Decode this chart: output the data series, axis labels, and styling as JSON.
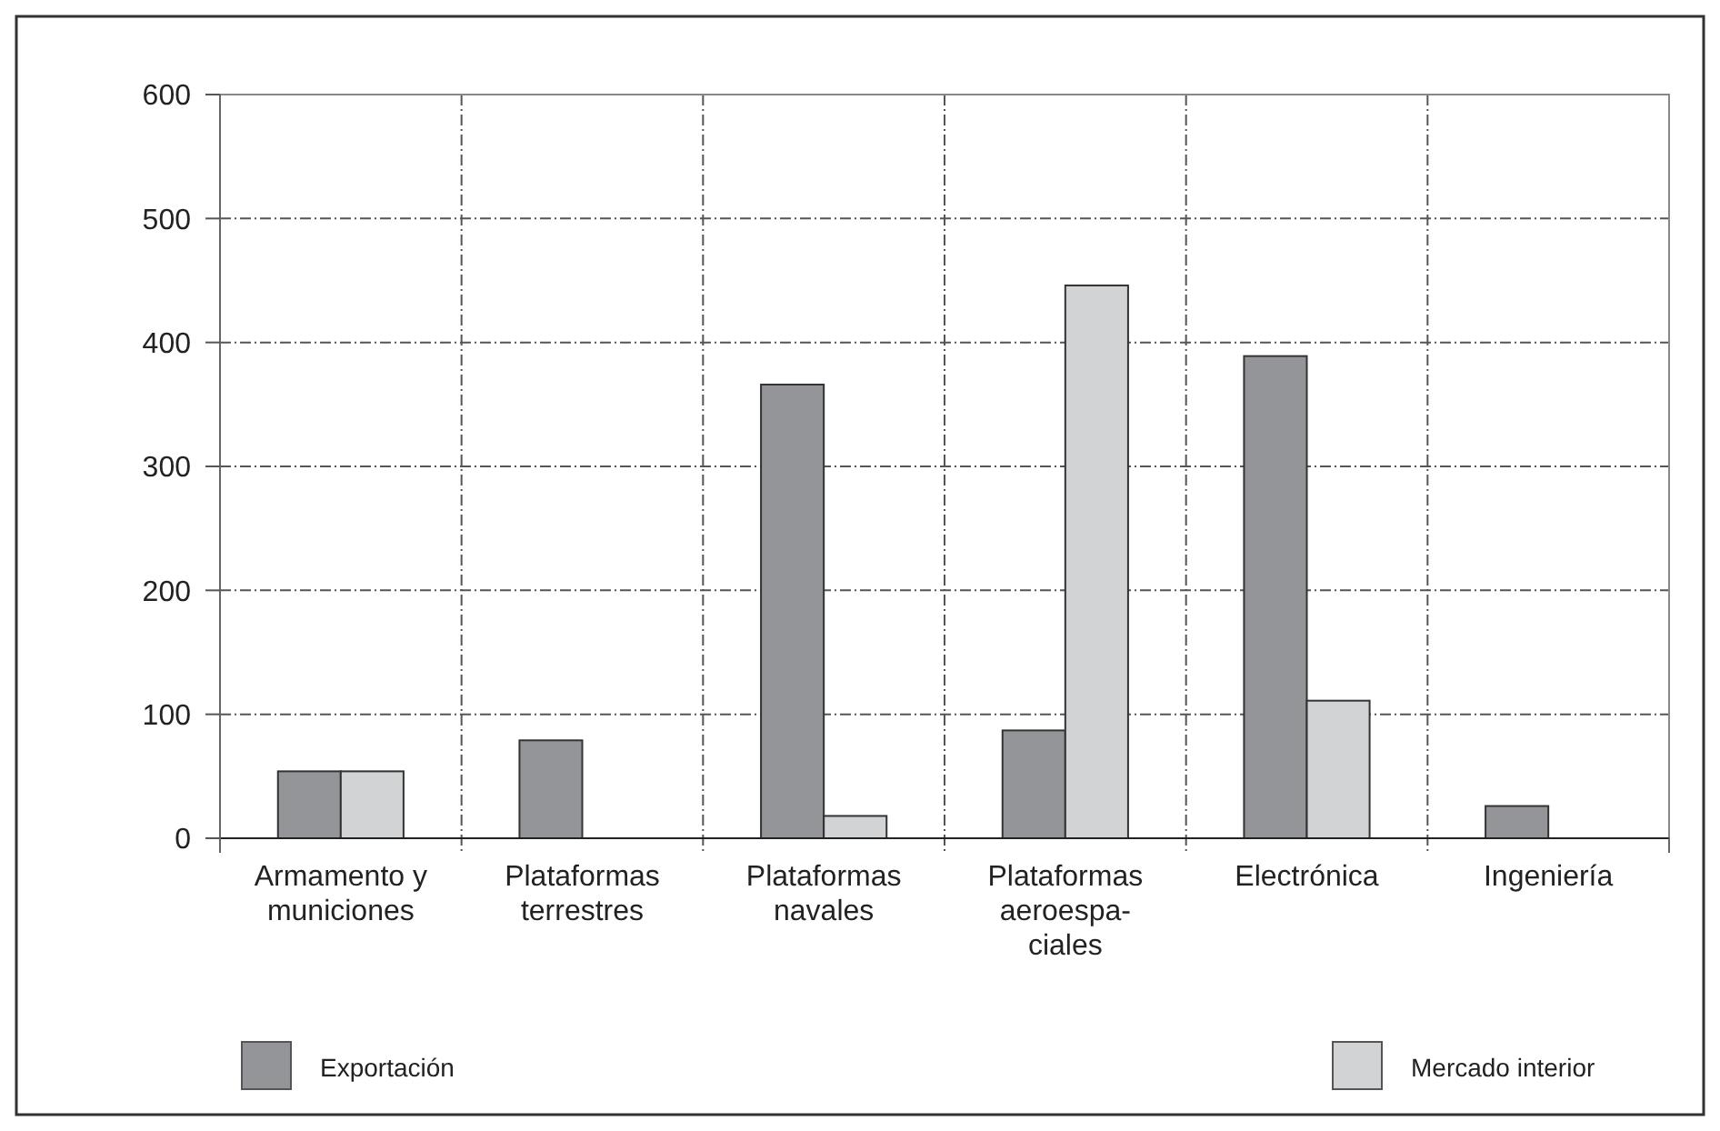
{
  "chart_data": {
    "type": "bar",
    "categories": [
      "Armamento y municiones",
      "Plataformas terrestres",
      "Plataformas navales",
      "Plataformas aeroespa-ciales",
      "Electrónica",
      "Ingeniería"
    ],
    "series": [
      {
        "name": "Exportación",
        "color": "#939598",
        "values": [
          54,
          79,
          366,
          87,
          389,
          26
        ]
      },
      {
        "name": "Mercado interior",
        "color": "#d1d3d4",
        "values": [
          54,
          null,
          18,
          446,
          111,
          null
        ]
      }
    ],
    "ylim": [
      0,
      600
    ],
    "yticks": [
      0,
      100,
      200,
      300,
      400,
      500,
      600
    ],
    "grid": true,
    "legend": "bottom"
  }
}
